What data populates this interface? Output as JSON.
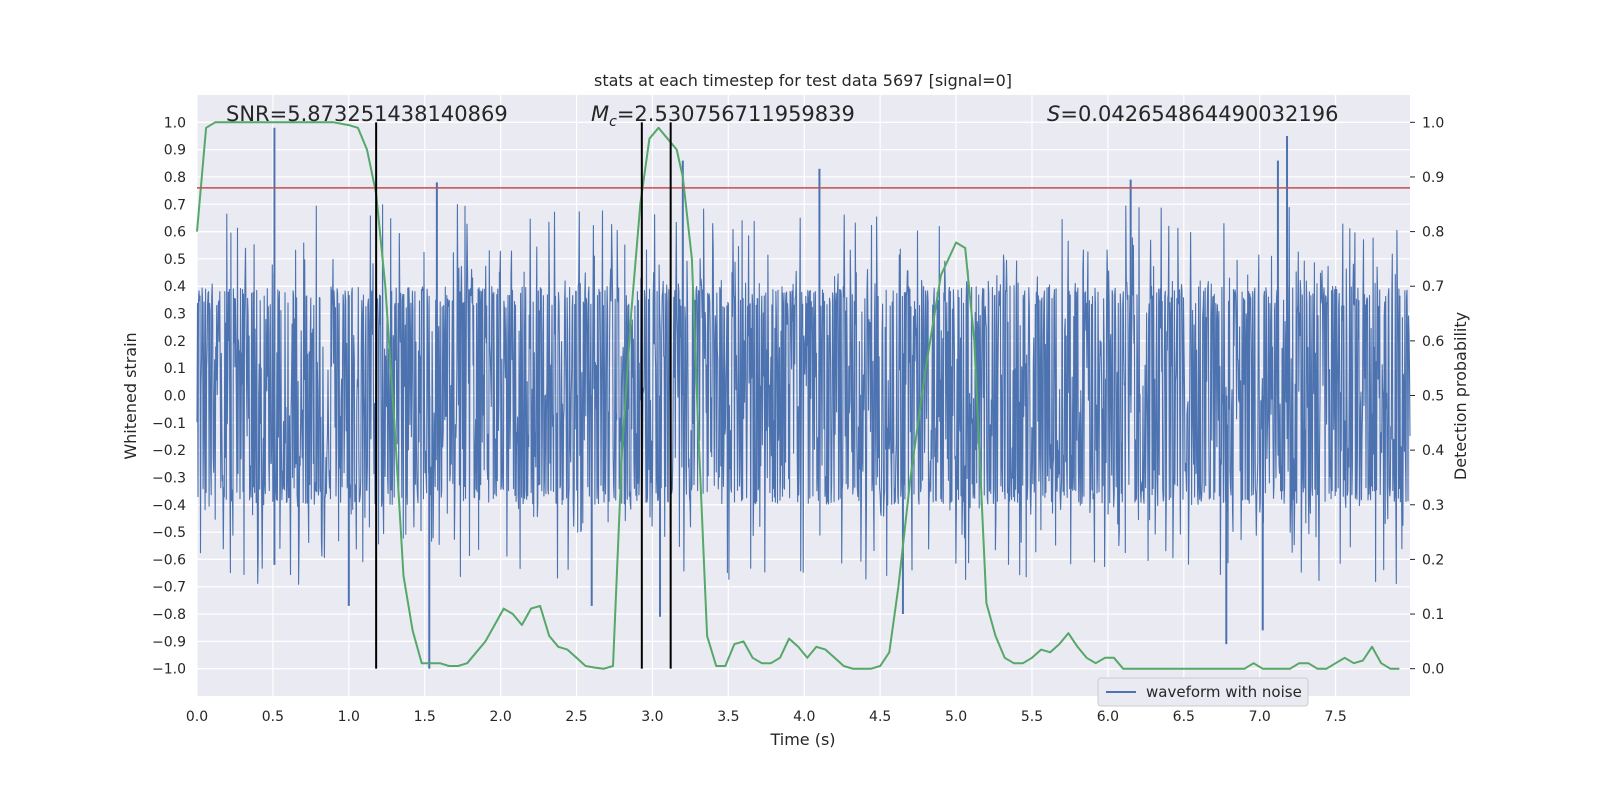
{
  "chart_data": {
    "type": "line",
    "title": "stats at each timestep for test data 5697 [signal=0]",
    "xlabel": "Time (s)",
    "ylabel": "Whitened strain",
    "y2label": "Detection probability",
    "xlim": [
      0.0,
      7.99
    ],
    "ylim": [
      -1.1,
      1.1
    ],
    "y2lim": [
      -0.05,
      1.05
    ],
    "x_ticks": [
      "0.0",
      "0.5",
      "1.0",
      "1.5",
      "2.0",
      "2.5",
      "3.0",
      "3.5",
      "4.0",
      "4.5",
      "5.0",
      "5.5",
      "6.0",
      "6.5",
      "7.0",
      "7.5"
    ],
    "y_ticks": [
      "−1.0",
      "−0.9",
      "−0.8",
      "−0.7",
      "−0.6",
      "−0.5",
      "−0.4",
      "−0.3",
      "−0.2",
      "−0.1",
      "0.0",
      "0.1",
      "0.2",
      "0.3",
      "0.4",
      "0.5",
      "0.6",
      "0.7",
      "0.8",
      "0.9",
      "1.0"
    ],
    "y2_ticks": [
      "0.0",
      "0.1",
      "0.2",
      "0.3",
      "0.4",
      "0.5",
      "0.6",
      "0.7",
      "0.8",
      "0.9",
      "1.0"
    ],
    "grid": true,
    "legend": {
      "placement": "lower-right",
      "entries": [
        "waveform with noise"
      ]
    },
    "annotations": {
      "snr": "SNR=5.873251438140869",
      "mc_symbol": "M",
      "mc_subscript": "c",
      "mc_value": "=2.530756711959839",
      "s_symbol": "S",
      "s_value": "=0.042654864490032196"
    },
    "threshold": {
      "y": 0.88,
      "axis": "right",
      "color": "#c44e52"
    },
    "vlines": [
      1.18,
      2.93,
      3.12
    ],
    "series": [
      {
        "name": "waveform with noise",
        "axis": "left",
        "color": "#4c72b0",
        "description": "noisy whitened strain, dense band about ±0.38 with spikes",
        "band": 0.38,
        "spikes": [
          {
            "x": 0.51,
            "y": 0.98
          },
          {
            "x": 0.51,
            "y": -0.62
          },
          {
            "x": 1.53,
            "y": -1.0
          },
          {
            "x": 1.58,
            "y": 0.78
          },
          {
            "x": 3.05,
            "y": -0.81
          },
          {
            "x": 3.2,
            "y": 0.86
          },
          {
            "x": 4.1,
            "y": 0.83
          },
          {
            "x": 6.15,
            "y": 0.79
          },
          {
            "x": 6.78,
            "y": -0.91
          },
          {
            "x": 7.12,
            "y": 0.86
          },
          {
            "x": 7.18,
            "y": 0.95
          },
          {
            "x": 7.02,
            "y": -0.86
          },
          {
            "x": 4.65,
            "y": -0.8
          },
          {
            "x": 1.0,
            "y": -0.77
          },
          {
            "x": 2.6,
            "y": -0.77
          }
        ]
      },
      {
        "name": "detection probability",
        "axis": "right",
        "color": "#55a868",
        "x": [
          0.0,
          0.06,
          0.12,
          0.2,
          0.3,
          0.5,
          0.7,
          0.9,
          1.0,
          1.06,
          1.12,
          1.18,
          1.24,
          1.3,
          1.36,
          1.42,
          1.48,
          1.54,
          1.6,
          1.66,
          1.72,
          1.78,
          1.84,
          1.9,
          1.96,
          2.02,
          2.08,
          2.14,
          2.2,
          2.26,
          2.32,
          2.38,
          2.44,
          2.5,
          2.56,
          2.62,
          2.68,
          2.74,
          2.8,
          2.86,
          2.92,
          2.98,
          3.04,
          3.1,
          3.16,
          3.2,
          3.26,
          3.3,
          3.36,
          3.42,
          3.48,
          3.54,
          3.6,
          3.66,
          3.72,
          3.78,
          3.84,
          3.9,
          3.96,
          4.02,
          4.08,
          4.14,
          4.2,
          4.26,
          4.32,
          4.38,
          4.44,
          4.5,
          4.56,
          4.62,
          4.7,
          4.8,
          4.9,
          5.0,
          5.06,
          5.12,
          5.2,
          5.26,
          5.32,
          5.38,
          5.44,
          5.5,
          5.56,
          5.62,
          5.68,
          5.74,
          5.8,
          5.86,
          5.92,
          5.98,
          6.04,
          6.1,
          6.16,
          6.22,
          6.3,
          6.4,
          6.5,
          6.6,
          6.7,
          6.8,
          6.9,
          6.96,
          7.02,
          7.08,
          7.14,
          7.2,
          7.26,
          7.32,
          7.38,
          7.44,
          7.5,
          7.56,
          7.62,
          7.68,
          7.74,
          7.8,
          7.86,
          7.92
        ],
        "y": [
          0.8,
          0.99,
          1.0,
          1.0,
          1.0,
          1.0,
          1.0,
          1.0,
          0.995,
          0.99,
          0.95,
          0.87,
          0.7,
          0.45,
          0.17,
          0.07,
          0.01,
          0.01,
          0.01,
          0.005,
          0.005,
          0.01,
          0.03,
          0.05,
          0.08,
          0.11,
          0.1,
          0.08,
          0.11,
          0.115,
          0.06,
          0.04,
          0.035,
          0.02,
          0.005,
          0.002,
          0.0,
          0.005,
          0.4,
          0.65,
          0.85,
          0.97,
          0.99,
          0.97,
          0.95,
          0.9,
          0.75,
          0.45,
          0.06,
          0.005,
          0.005,
          0.045,
          0.05,
          0.02,
          0.01,
          0.01,
          0.02,
          0.055,
          0.04,
          0.02,
          0.04,
          0.035,
          0.02,
          0.005,
          0.0,
          0.0,
          0.0,
          0.005,
          0.03,
          0.15,
          0.35,
          0.55,
          0.72,
          0.78,
          0.77,
          0.6,
          0.12,
          0.06,
          0.02,
          0.01,
          0.01,
          0.02,
          0.035,
          0.03,
          0.045,
          0.065,
          0.04,
          0.02,
          0.01,
          0.02,
          0.02,
          0.0,
          0.0,
          0.0,
          0.0,
          0.0,
          0.0,
          0.0,
          0.0,
          0.0,
          0.0,
          0.01,
          0.0,
          0.0,
          0.0,
          0.0,
          0.01,
          0.01,
          0.0,
          0.0,
          0.01,
          0.02,
          0.01,
          0.015,
          0.04,
          0.01,
          0.0,
          0.0
        ]
      }
    ]
  }
}
